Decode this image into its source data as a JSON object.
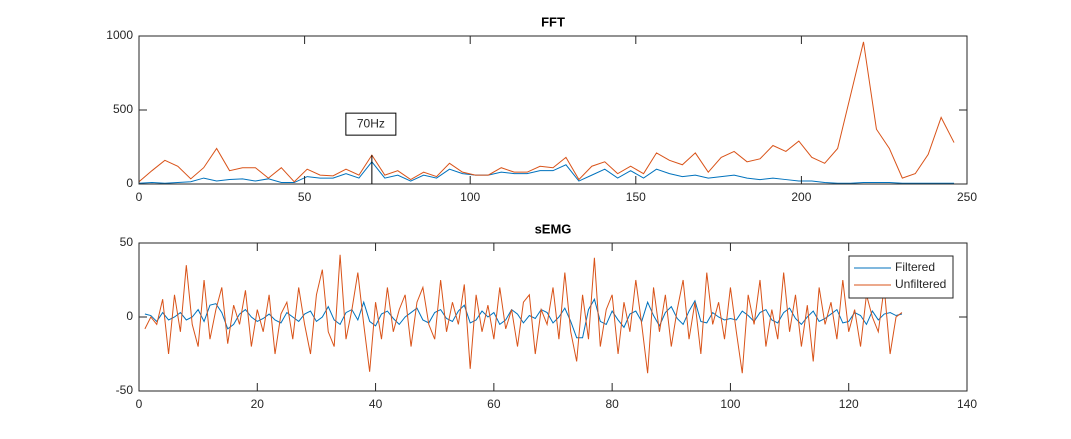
{
  "chart_data": [
    {
      "type": "line",
      "title": "FFT",
      "x": [
        0,
        3.91,
        7.81,
        11.72,
        15.63,
        19.53,
        23.44,
        27.34,
        31.25,
        35.16,
        39.06,
        42.97,
        46.88,
        50.78,
        54.69,
        58.59,
        62.5,
        66.41,
        70.31,
        74.22,
        78.13,
        82.03,
        85.94,
        89.84,
        93.75,
        97.66,
        101.56,
        105.47,
        109.38,
        113.28,
        117.19,
        121.09,
        125,
        128.91,
        132.81,
        136.72,
        140.63,
        144.53,
        148.44,
        152.34,
        156.25,
        160.16,
        164.06,
        167.97,
        171.88,
        175.78,
        179.69,
        183.59,
        187.5,
        191.41,
        195.31,
        199.22,
        203.13,
        207.03,
        210.94,
        214.84,
        218.75,
        222.66,
        226.56,
        230.47,
        234.38,
        238.28,
        242.19,
        246.09
      ],
      "series": [
        {
          "color": "#0072bd",
          "values": [
            5,
            10,
            5,
            10,
            15,
            40,
            20,
            30,
            35,
            20,
            35,
            10,
            10,
            50,
            40,
            40,
            70,
            40,
            150,
            40,
            60,
            20,
            60,
            40,
            100,
            70,
            60,
            60,
            80,
            70,
            70,
            90,
            90,
            130,
            20,
            60,
            100,
            40,
            90,
            40,
            100,
            70,
            50,
            60,
            40,
            50,
            60,
            40,
            30,
            40,
            30,
            20,
            20,
            10,
            5,
            5,
            10,
            10,
            10,
            5,
            5,
            5,
            5,
            5
          ]
        },
        {
          "color": "#d95319",
          "values": [
            15,
            90,
            160,
            120,
            35,
            110,
            240,
            90,
            110,
            110,
            40,
            110,
            15,
            100,
            60,
            55,
            100,
            60,
            195,
            60,
            90,
            30,
            80,
            50,
            140,
            80,
            60,
            60,
            110,
            80,
            80,
            120,
            110,
            180,
            30,
            120,
            150,
            70,
            120,
            70,
            210,
            160,
            130,
            210,
            80,
            180,
            220,
            150,
            170,
            260,
            220,
            290,
            180,
            140,
            240,
            600,
            960,
            370,
            240,
            40,
            70,
            200,
            450,
            280
          ]
        }
      ],
      "annotations": [
        {
          "text": "70Hz",
          "x": 70.31,
          "y": 195
        }
      ],
      "xlim": [
        0,
        250
      ],
      "xticks": [
        0,
        50,
        100,
        150,
        200,
        250
      ],
      "ylim": [
        0,
        1000
      ],
      "yticks": [
        0,
        500,
        1000
      ]
    },
    {
      "type": "line",
      "title": "sEMG",
      "x": [
        1,
        2,
        3,
        4,
        5,
        6,
        7,
        8,
        9,
        10,
        11,
        12,
        13,
        14,
        15,
        16,
        17,
        18,
        19,
        20,
        21,
        22,
        23,
        24,
        25,
        26,
        27,
        28,
        29,
        30,
        31,
        32,
        33,
        34,
        35,
        36,
        37,
        38,
        39,
        40,
        41,
        42,
        43,
        44,
        45,
        46,
        47,
        48,
        49,
        50,
        51,
        52,
        53,
        54,
        55,
        56,
        57,
        58,
        59,
        60,
        61,
        62,
        63,
        64,
        65,
        66,
        67,
        68,
        69,
        70,
        71,
        72,
        73,
        74,
        75,
        76,
        77,
        78,
        79,
        80,
        81,
        82,
        83,
        84,
        85,
        86,
        87,
        88,
        89,
        90,
        91,
        92,
        93,
        94,
        95,
        96,
        97,
        98,
        99,
        100,
        101,
        102,
        103,
        104,
        105,
        106,
        107,
        108,
        109,
        110,
        111,
        112,
        113,
        114,
        115,
        116,
        117,
        118,
        119,
        120,
        121,
        122,
        123,
        124,
        125,
        126,
        127,
        128,
        129
      ],
      "series": [
        {
          "name": "Filtered",
          "color": "#0072bd",
          "values": [
            2,
            1,
            -3,
            3,
            -2,
            0,
            3,
            -2,
            0,
            5,
            -3,
            8,
            9,
            3,
            -8,
            -5,
            2,
            5,
            0,
            -3,
            -1,
            2,
            -2,
            -4,
            3,
            0,
            -3,
            2,
            4,
            -3,
            0,
            7,
            -2,
            -5,
            3,
            5,
            -2,
            10,
            -3,
            -6,
            2,
            4,
            -1,
            -5,
            0,
            3,
            6,
            -2,
            -4,
            3,
            5,
            -1,
            -3,
            4,
            8,
            -4,
            -2,
            4,
            0,
            3,
            -5,
            -2,
            5,
            2,
            -4,
            1,
            -1,
            5,
            3,
            -4,
            0,
            6,
            -3,
            -14,
            -14,
            5,
            12,
            -3,
            -5,
            4,
            -2,
            -7,
            2,
            4,
            -3,
            10,
            1,
            -6,
            3,
            7,
            -1,
            -5,
            4,
            11,
            -3,
            -4,
            3,
            0,
            -2,
            -1,
            -2,
            4,
            1,
            -3,
            3,
            5,
            -2,
            -4,
            3,
            6,
            -1,
            -5,
            0,
            4,
            -3,
            -1,
            2,
            5,
            -4,
            -3,
            3,
            1,
            -5,
            4,
            -2,
            2,
            3,
            1,
            2
          ]
        },
        {
          "name": "Unfiltered",
          "color": "#d95319",
          "values": [
            -8,
            0,
            -5,
            12,
            -25,
            15,
            -10,
            35,
            -5,
            -20,
            25,
            -15,
            5,
            20,
            -18,
            8,
            -5,
            18,
            -20,
            5,
            -10,
            15,
            -25,
            2,
            10,
            -15,
            20,
            -5,
            -25,
            15,
            32,
            -10,
            -20,
            42,
            -15,
            5,
            30,
            -5,
            -37,
            10,
            -15,
            20,
            -10,
            5,
            15,
            -20,
            10,
            20,
            -5,
            -15,
            25,
            -10,
            10,
            -5,
            22,
            -35,
            15,
            -10,
            8,
            -15,
            20,
            -8,
            5,
            -20,
            10,
            15,
            -25,
            5,
            -5,
            20,
            -15,
            30,
            -10,
            -30,
            15,
            -15,
            40,
            -20,
            5,
            15,
            -25,
            10,
            -10,
            25,
            -5,
            -38,
            20,
            -10,
            15,
            -20,
            5,
            25,
            -15,
            10,
            -25,
            30,
            -5,
            10,
            -15,
            20,
            -10,
            -38,
            15,
            -5,
            25,
            -20,
            5,
            -15,
            30,
            -10,
            15,
            -20,
            8,
            -30,
            20,
            -5,
            10,
            -15,
            25,
            -10,
            5,
            -20,
            15,
            0,
            -10,
            20,
            -25,
            0,
            3
          ]
        }
      ],
      "legend": "northeast",
      "xlim": [
        0,
        140
      ],
      "xticks": [
        0,
        20,
        40,
        60,
        80,
        100,
        120,
        140
      ],
      "ylim": [
        -50,
        50
      ],
      "yticks": [
        -50,
        0,
        50
      ]
    }
  ]
}
